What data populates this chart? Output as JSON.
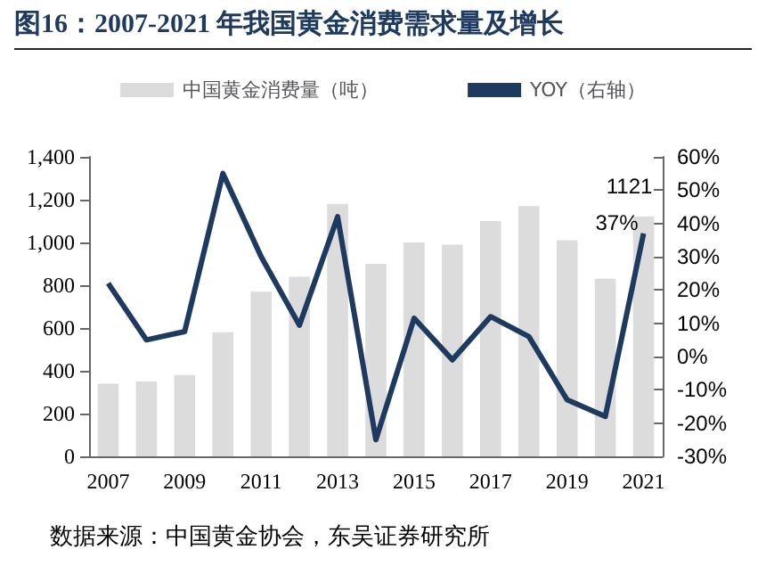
{
  "chart_data": {
    "type": "bar",
    "title": "图16：2007-2021 年我国黄金消费需求量及增长",
    "annotations": [
      "数据来源：中国黄金协会，东吴证券研究所"
    ],
    "categories": [
      "2007",
      null,
      "2009",
      null,
      "2011",
      null,
      "2013",
      null,
      "2015",
      null,
      "2017",
      null,
      "2019",
      null,
      "2021"
    ],
    "series": [
      {
        "name": "中国黄金消费量（吨）",
        "color": "#dcdcdc",
        "values": [
          340,
          350,
          380,
          580,
          770,
          840,
          1180,
          900,
          1000,
          990,
          1100,
          1170,
          1010,
          830,
          1121
        ],
        "value_labels": [
          null,
          null,
          null,
          null,
          null,
          null,
          null,
          null,
          null,
          null,
          null,
          null,
          null,
          null,
          "1121"
        ]
      },
      {
        "name": "YOY（右轴）",
        "type": "line",
        "axis": "y2",
        "color": "#1f3a5f",
        "values": [
          22,
          5,
          7.5,
          55,
          30,
          9.4,
          42,
          -25,
          11.5,
          -1,
          12,
          6,
          -13,
          -18,
          37
        ],
        "value_labels": [
          null,
          null,
          null,
          null,
          null,
          null,
          null,
          null,
          null,
          null,
          null,
          null,
          null,
          null,
          "37%"
        ]
      }
    ],
    "ylim": [
      0,
      1400
    ],
    "yticks": [
      0,
      200,
      400,
      600,
      800,
      {
        "value": 1000,
        "label": "1,000"
      },
      {
        "value": 1200,
        "label": "1,200"
      },
      {
        "value": 1400,
        "label": "1,400"
      }
    ],
    "y2lim": [
      -30,
      60
    ],
    "y2ticks": [
      {
        "value": -30,
        "label": "-30%"
      },
      {
        "value": -20,
        "label": "-20%"
      },
      {
        "value": -10,
        "label": "-10%"
      },
      {
        "value": 0,
        "label": "0%"
      },
      {
        "value": 10,
        "label": "10%"
      },
      {
        "value": 20,
        "label": "20%"
      },
      {
        "value": 30,
        "label": "30%"
      },
      {
        "value": 40,
        "label": "40%"
      },
      {
        "value": 50,
        "label": "50%"
      },
      {
        "value": 60,
        "label": "60%"
      }
    ],
    "legend": "top",
    "grid": false,
    "marker": "none",
    "line_style": "solid"
  }
}
